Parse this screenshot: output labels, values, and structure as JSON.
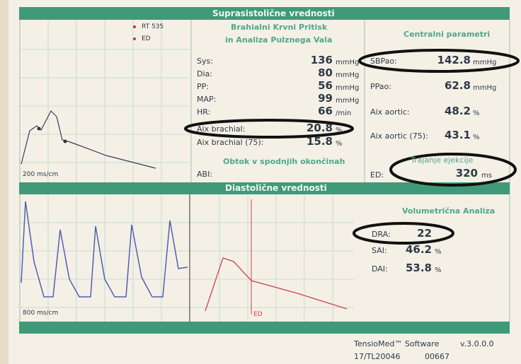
{
  "header": {
    "title": "Suprasistolične vrednosti"
  },
  "legend": [
    "RT 535",
    "ED"
  ],
  "brachial": {
    "title": "Brahialni Krvni Pritisk",
    "subtitle": "in Analiza Pulznega Vala",
    "rows": [
      {
        "label": "Sys:",
        "value": "136",
        "unit": "mmHg"
      },
      {
        "label": "Dia:",
        "value": "80",
        "unit": "mmHg"
      },
      {
        "label": "PP:",
        "value": "56",
        "unit": "mmHg"
      },
      {
        "label": "MAP:",
        "value": "99",
        "unit": "mmHg"
      },
      {
        "label": "HR:",
        "value": "66",
        "unit": "/min"
      },
      {
        "label": "Aix brachial:",
        "value": "20.8",
        "unit": "%"
      },
      {
        "label": "Aix brachial (75):",
        "value": "15.8",
        "unit": "%"
      }
    ]
  },
  "lower_limbs": {
    "title": "Obtok v spodnjih okončinah",
    "label": "ABI:"
  },
  "central": {
    "title": "Centralni parametri",
    "rows": [
      {
        "label": "SBPao:",
        "value": "142.8",
        "unit": "mmHg"
      },
      {
        "label": "PPao:",
        "value": "62.8",
        "unit": "mmHg"
      },
      {
        "label": "Aix aortic:",
        "value": "48.2",
        "unit": "%"
      },
      {
        "label": "Aix aortic (75):",
        "value": "43.1",
        "unit": "%"
      }
    ],
    "ejection_title": "Trajanje ejekcije",
    "ejection": {
      "label": "ED:",
      "value": "320",
      "unit": "ms"
    }
  },
  "top_scale": "200 ms/cm",
  "diastolic": {
    "title": "Diastolične vrednosti"
  },
  "bottom_scale": "800 ms/cm",
  "red_marker": "ED",
  "volumetric": {
    "title": "Volumetrična Analiza",
    "rows": [
      {
        "label": "DRA:",
        "value": "22",
        "unit": ""
      },
      {
        "label": "SAI:",
        "value": "46.2",
        "unit": "%"
      },
      {
        "label": "DAI:",
        "value": "53.8",
        "unit": "%"
      }
    ]
  },
  "footer": {
    "software": "TensioMed™ Software",
    "version": "v.3.0.0.0",
    "serial": "17/TL20046",
    "code": "00667"
  }
}
